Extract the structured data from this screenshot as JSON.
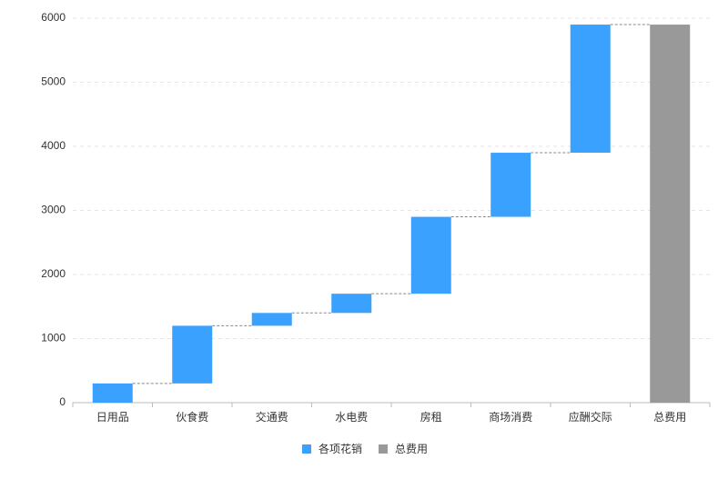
{
  "chart_data": {
    "type": "waterfall",
    "categories": [
      "日用品",
      "伙食费",
      "交通费",
      "水电费",
      "房租",
      "商场消费",
      "应酬交际",
      "总费用"
    ],
    "series": [
      {
        "name": "各项花销",
        "color": "#3ba1ff",
        "values": [
          300,
          900,
          200,
          300,
          1200,
          1000,
          2000,
          null
        ]
      },
      {
        "name": "总费用",
        "color": "#999999",
        "values": [
          null,
          null,
          null,
          null,
          null,
          null,
          null,
          5900
        ]
      }
    ],
    "ylim": [
      0,
      6000
    ],
    "yticks": [
      0,
      1000,
      2000,
      3000,
      4000,
      5000,
      6000
    ],
    "grid": true,
    "legend": "bottom"
  }
}
